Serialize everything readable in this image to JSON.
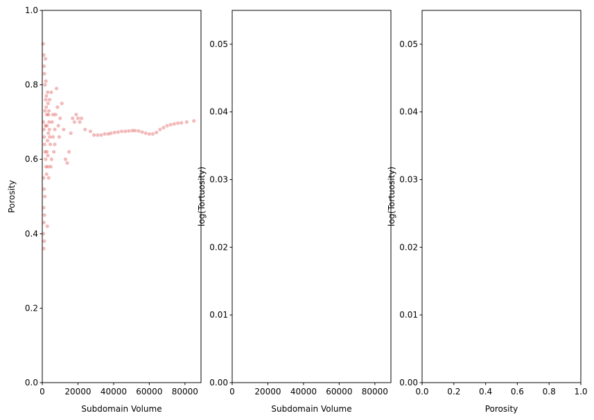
{
  "chart_data": [
    {
      "type": "scatter",
      "xlabel": "Subdomain Volume",
      "ylabel": "Porosity",
      "color": "#d62728",
      "xlim": [
        0,
        89000
      ],
      "ylim": [
        0,
        1
      ],
      "xticks": [
        0,
        20000,
        40000,
        60000,
        80000
      ],
      "yticks": [
        {
          "value": 0,
          "label": "0.0"
        },
        {
          "value": 0.2,
          "label": "0.2"
        },
        {
          "value": 0.4,
          "label": "0.4"
        },
        {
          "value": 0.6,
          "label": "0.6"
        },
        {
          "value": 0.8,
          "label": "0.8"
        },
        {
          "value": 1,
          "label": "1.0"
        }
      ],
      "x": [
        500,
        800,
        1000,
        1200,
        1500,
        1800,
        2000,
        2200,
        2500,
        600,
        900,
        1100,
        1300,
        1600,
        1900,
        2100,
        2400,
        700,
        1000,
        1400,
        800,
        1200,
        900,
        600,
        1100,
        800,
        2800,
        3000,
        3200,
        3500,
        3800,
        4000,
        4200,
        4500,
        2600,
        2900,
        3100,
        3300,
        3600,
        3400,
        3700,
        4100,
        5000,
        5500,
        6000,
        6500,
        7000,
        7500,
        8000,
        8500,
        9000,
        9500,
        10000,
        11000,
        12000,
        13000,
        14000,
        15000,
        16000,
        17000,
        18000,
        19000,
        20000,
        21000,
        22000,
        2000,
        1500,
        1800,
        2300,
        2600,
        4800,
        5200,
        6000,
        7000,
        24000,
        27000,
        29000,
        31000,
        33000,
        35000,
        37000,
        38500,
        40500,
        42500,
        44500,
        46500,
        48500,
        50500,
        52000,
        54000,
        56000,
        58000,
        60000,
        62000,
        64000,
        66000,
        68000,
        70000,
        72000,
        74000,
        76000,
        78000,
        81000,
        85000
      ],
      "y": [
        0.91,
        0.88,
        0.85,
        0.83,
        0.8,
        0.87,
        0.76,
        0.74,
        0.72,
        0.7,
        0.68,
        0.66,
        0.64,
        0.62,
        0.6,
        0.58,
        0.56,
        0.55,
        0.52,
        0.5,
        0.47,
        0.45,
        0.43,
        0.4,
        0.38,
        0.36,
        0.42,
        0.78,
        0.75,
        0.72,
        0.7,
        0.68,
        0.66,
        0.64,
        0.69,
        0.65,
        0.61,
        0.58,
        0.55,
        0.67,
        0.73,
        0.76,
        0.78,
        0.7,
        0.66,
        0.62,
        0.68,
        0.72,
        0.79,
        0.74,
        0.69,
        0.66,
        0.71,
        0.75,
        0.68,
        0.6,
        0.59,
        0.62,
        0.67,
        0.71,
        0.7,
        0.72,
        0.71,
        0.7,
        0.71,
        0.81,
        0.73,
        0.69,
        0.77,
        0.62,
        0.58,
        0.6,
        0.72,
        0.64,
        0.68,
        0.675,
        0.665,
        0.665,
        0.665,
        0.668,
        0.668,
        0.67,
        0.672,
        0.673,
        0.675,
        0.675,
        0.676,
        0.677,
        0.677,
        0.676,
        0.673,
        0.67,
        0.668,
        0.668,
        0.672,
        0.68,
        0.685,
        0.69,
        0.693,
        0.695,
        0.697,
        0.698,
        0.7,
        0.703
      ]
    },
    {
      "type": "scatter",
      "xlabel": "Subdomain Volume",
      "ylabel": "log(Tortuosity)",
      "xlim": [
        0,
        89000
      ],
      "ylim": [
        0,
        0.055
      ],
      "xticks": [
        0,
        20000,
        40000,
        60000,
        80000
      ],
      "yticks": [
        {
          "value": 0,
          "label": "0.00"
        },
        {
          "value": 0.01,
          "label": "0.01"
        },
        {
          "value": 0.02,
          "label": "0.02"
        },
        {
          "value": 0.03,
          "label": "0.03"
        },
        {
          "value": 0.04,
          "label": "0.04"
        },
        {
          "value": 0.05,
          "label": "0.05"
        }
      ]
    },
    {
      "type": "scatter",
      "xlabel": "Porosity",
      "ylabel": "log(Tortuosity)",
      "xlim": [
        0,
        1
      ],
      "ylim": [
        0,
        0.055
      ],
      "xticks": [
        {
          "value": 0,
          "label": "0.0"
        },
        {
          "value": 0.2,
          "label": "0.2"
        },
        {
          "value": 0.4,
          "label": "0.4"
        },
        {
          "value": 0.6,
          "label": "0.6"
        },
        {
          "value": 0.8,
          "label": "0.8"
        },
        {
          "value": 1,
          "label": "1.0"
        }
      ],
      "yticks": [
        {
          "value": 0,
          "label": "0.00"
        },
        {
          "value": 0.01,
          "label": "0.01"
        },
        {
          "value": 0.02,
          "label": "0.02"
        },
        {
          "value": 0.03,
          "label": "0.03"
        },
        {
          "value": 0.04,
          "label": "0.04"
        },
        {
          "value": 0.05,
          "label": "0.05"
        }
      ]
    }
  ]
}
